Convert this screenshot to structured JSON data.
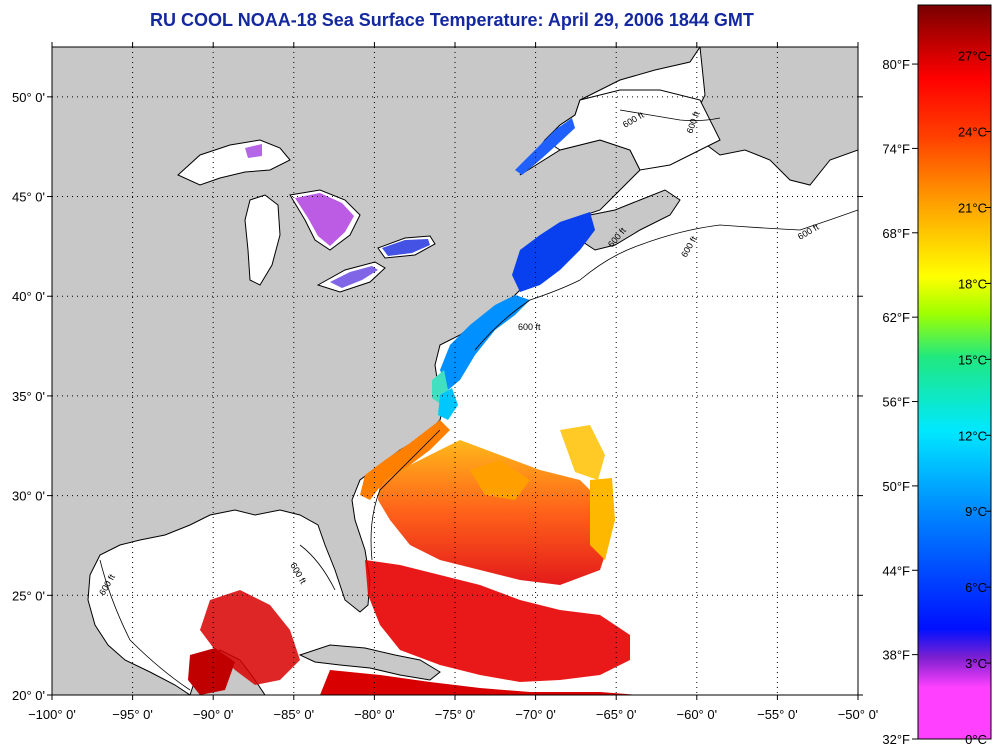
{
  "title": "RU COOL  NOAA-18  Sea Surface Temperature:  April 29, 2006 1844 GMT",
  "map": {
    "lon_range": [
      -100,
      -50
    ],
    "lat_range": [
      20,
      52.5
    ],
    "lon_ticks": [
      "−100° 0'",
      "−95° 0'",
      "−90° 0'",
      "−85° 0'",
      "−80° 0'",
      "−75° 0'",
      "−70° 0'",
      "−65° 0'",
      "−60° 0'",
      "−55° 0'",
      "−50° 0'"
    ],
    "lat_ticks": [
      "20° 0'",
      "25° 0'",
      "30° 0'",
      "35° 0'",
      "40° 0'",
      "45° 0'",
      "50° 0'"
    ],
    "isobath_labels": [
      "600 ft",
      "600 ft",
      "600 ft",
      "600 ft",
      "600 ft",
      "600 ft",
      "600 ft",
      "600 ft"
    ],
    "colors": {
      "land": "#c8c8c8",
      "ocean_nodata": "#ffffff",
      "grid": "#000000"
    }
  },
  "colorbar": {
    "fahrenheit_labels": [
      "80°F",
      "74°F",
      "68°F",
      "62°F",
      "56°F",
      "50°F",
      "44°F",
      "38°F",
      "32°F"
    ],
    "celsius_labels": [
      "27°C",
      "24°C",
      "21°C",
      "18°C",
      "15°C",
      "12°C",
      "9°C",
      "6°C",
      "3°C",
      "0°C"
    ],
    "range_c": [
      0,
      29
    ],
    "stops": [
      "#ff40ff",
      "#8020d0",
      "#0010ff",
      "#0080ff",
      "#00e8ff",
      "#20e880",
      "#a0ff00",
      "#ffff00",
      "#ffa000",
      "#ff4000",
      "#ff0000",
      "#b00000",
      "#780000"
    ]
  }
}
